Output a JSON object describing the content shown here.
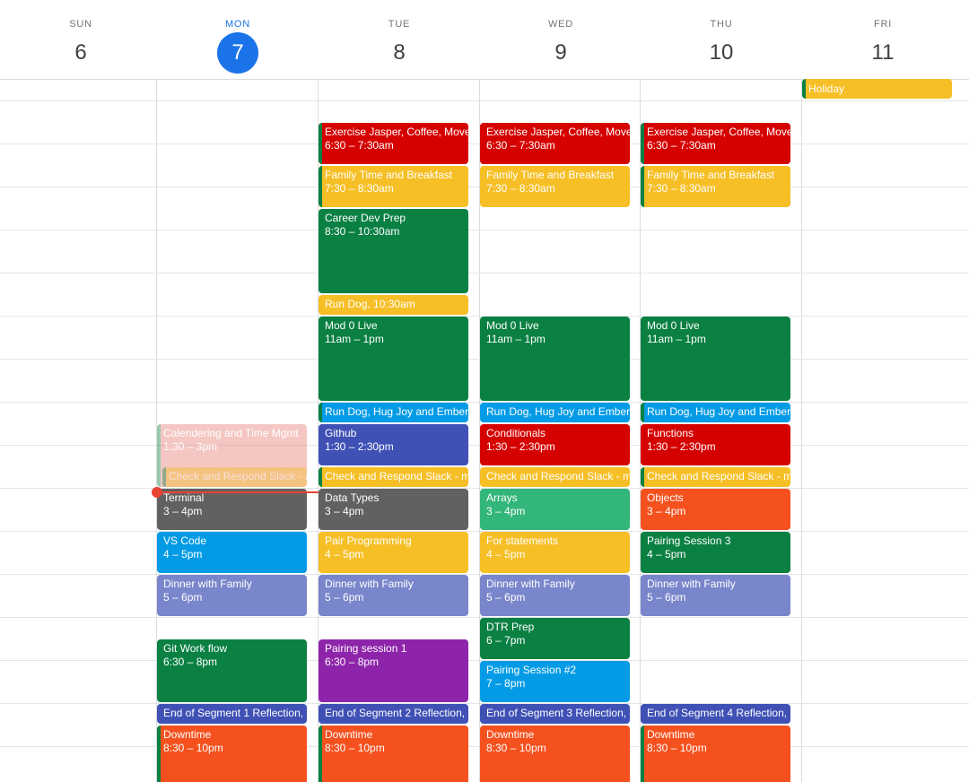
{
  "calendar": {
    "days": [
      {
        "dow": "SUN",
        "num": "6"
      },
      {
        "dow": "MON",
        "num": "7"
      },
      {
        "dow": "TUE",
        "num": "8"
      },
      {
        "dow": "WED",
        "num": "9"
      },
      {
        "dow": "THU",
        "num": "10"
      },
      {
        "dow": "FRI",
        "num": "11"
      }
    ],
    "today_index": 1,
    "all_day": [
      {
        "day": 5,
        "title": "Holiday",
        "color": "#f6bf26"
      }
    ],
    "events": [
      {
        "day": 2,
        "start": 6.5,
        "end": 7.5,
        "title": "Exercise Jasper, Coffee, Move",
        "time": "6:30 – 7:30am",
        "color": "#d50000",
        "bar": "#0b8043"
      },
      {
        "day": 2,
        "start": 7.5,
        "end": 8.5,
        "title": "Family Time and Breakfast",
        "time": "7:30 – 8:30am",
        "color": "#f6bf26",
        "bar": "#0b8043"
      },
      {
        "day": 2,
        "start": 8.5,
        "end": 10.5,
        "title": "Career Dev Prep",
        "time": "8:30 – 10:30am",
        "color": "#0b8043"
      },
      {
        "day": 2,
        "start": 10.5,
        "end": 11,
        "title": "Run Dog",
        "time": "10:30am",
        "color": "#f6bf26",
        "inline": true
      },
      {
        "day": 2,
        "start": 11,
        "end": 13,
        "title": "Mod 0 Live",
        "time": "11am – 1pm",
        "color": "#0b8043"
      },
      {
        "day": 2,
        "start": 13,
        "end": 13.5,
        "title": "Run Dog, Hug Joy and Ember",
        "time": "",
        "color": "#039be5",
        "bar": "#0b8043"
      },
      {
        "day": 2,
        "start": 13.5,
        "end": 14.5,
        "title": "Github",
        "time": "1:30 – 2:30pm",
        "color": "#3f51b5"
      },
      {
        "day": 2,
        "start": 14.5,
        "end": 15,
        "title": "Check and Respond Slack - m",
        "time": "",
        "color": "#f6bf26",
        "bar": "#0b8043"
      },
      {
        "day": 2,
        "start": 15,
        "end": 16,
        "title": "Data Types",
        "time": "3 – 4pm",
        "color": "#616161"
      },
      {
        "day": 2,
        "start": 16,
        "end": 17,
        "title": "Pair Programming",
        "time": "4 – 5pm",
        "color": "#f6bf26"
      },
      {
        "day": 2,
        "start": 17,
        "end": 18,
        "title": "Dinner with Family",
        "time": "5 – 6pm",
        "color": "#7986cb"
      },
      {
        "day": 2,
        "start": 18.5,
        "end": 20,
        "title": "Pairing session 1",
        "time": "6:30 – 8pm",
        "color": "#8e24aa"
      },
      {
        "day": 2,
        "start": 20,
        "end": 20.5,
        "title": "End of Segment 2 Reflection,",
        "time": "",
        "color": "#3f51b5"
      },
      {
        "day": 2,
        "start": 20.5,
        "end": 22,
        "title": "Downtime",
        "time": "8:30 – 10pm",
        "color": "#f4511e",
        "bar": "#0b8043"
      },
      {
        "day": 3,
        "start": 6.5,
        "end": 7.5,
        "title": "Exercise Jasper, Coffee, Move",
        "time": "6:30 – 7:30am",
        "color": "#d50000"
      },
      {
        "day": 3,
        "start": 7.5,
        "end": 8.5,
        "title": "Family Time and Breakfast",
        "time": "7:30 – 8:30am",
        "color": "#f6bf26"
      },
      {
        "day": 3,
        "start": 11,
        "end": 13,
        "title": "Mod 0 Live",
        "time": "11am – 1pm",
        "color": "#0b8043"
      },
      {
        "day": 3,
        "start": 13,
        "end": 13.5,
        "title": "Run Dog, Hug Joy and Ember",
        "time": "",
        "color": "#039be5"
      },
      {
        "day": 3,
        "start": 13.5,
        "end": 14.5,
        "title": "Conditionals",
        "time": "1:30 – 2:30pm",
        "color": "#d50000"
      },
      {
        "day": 3,
        "start": 14.5,
        "end": 15,
        "title": "Check and Respond Slack - m",
        "time": "",
        "color": "#f6bf26"
      },
      {
        "day": 3,
        "start": 15,
        "end": 16,
        "title": "Arrays",
        "time": "3 – 4pm",
        "color": "#33b679"
      },
      {
        "day": 3,
        "start": 16,
        "end": 17,
        "title": "For statements",
        "time": "4 – 5pm",
        "color": "#f6bf26"
      },
      {
        "day": 3,
        "start": 17,
        "end": 18,
        "title": "Dinner with Family",
        "time": "5 – 6pm",
        "color": "#7986cb"
      },
      {
        "day": 3,
        "start": 18,
        "end": 19,
        "title": "DTR Prep",
        "time": "6 – 7pm",
        "color": "#0b8043"
      },
      {
        "day": 3,
        "start": 19,
        "end": 20,
        "title": "Pairing Session #2",
        "time": "7 – 8pm",
        "color": "#039be5"
      },
      {
        "day": 3,
        "start": 20,
        "end": 20.5,
        "title": "End of Segment 3 Reflection,",
        "time": "",
        "color": "#3f51b5"
      },
      {
        "day": 3,
        "start": 20.5,
        "end": 22,
        "title": "Downtime",
        "time": "8:30 – 10pm",
        "color": "#f4511e"
      },
      {
        "day": 4,
        "start": 6.5,
        "end": 7.5,
        "title": "Exercise Jasper, Coffee, Move",
        "time": "6:30 – 7:30am",
        "color": "#d50000",
        "bar": "#0b8043"
      },
      {
        "day": 4,
        "start": 7.5,
        "end": 8.5,
        "title": "Family Time and Breakfast",
        "time": "7:30 – 8:30am",
        "color": "#f6bf26",
        "bar": "#0b8043"
      },
      {
        "day": 4,
        "start": 11,
        "end": 13,
        "title": "Mod 0 Live",
        "time": "11am – 1pm",
        "color": "#0b8043"
      },
      {
        "day": 4,
        "start": 13,
        "end": 13.5,
        "title": "Run Dog, Hug Joy and Ember",
        "time": "",
        "color": "#039be5",
        "bar": "#0b8043"
      },
      {
        "day": 4,
        "start": 13.5,
        "end": 14.5,
        "title": "Functions",
        "time": "1:30 – 2:30pm",
        "color": "#d50000"
      },
      {
        "day": 4,
        "start": 14.5,
        "end": 15,
        "title": "Check and Respond Slack - m",
        "time": "",
        "color": "#f6bf26",
        "bar": "#0b8043"
      },
      {
        "day": 4,
        "start": 15,
        "end": 16,
        "title": "Objects",
        "time": "3 – 4pm",
        "color": "#f4511e"
      },
      {
        "day": 4,
        "start": 16,
        "end": 17,
        "title": "Pairing Session 3",
        "time": "4 – 5pm",
        "color": "#0b8043"
      },
      {
        "day": 4,
        "start": 17,
        "end": 18,
        "title": "Dinner with Family",
        "time": "5 – 6pm",
        "color": "#7986cb"
      },
      {
        "day": 4,
        "start": 20,
        "end": 20.5,
        "title": "End of Segment 4 Reflection,",
        "time": "",
        "color": "#3f51b5"
      },
      {
        "day": 4,
        "start": 20.5,
        "end": 22,
        "title": "Downtime",
        "time": "8:30 – 10pm",
        "color": "#f4511e",
        "bar": "#0b8043"
      },
      {
        "day": 1,
        "start": 13.5,
        "end": 15,
        "title": "Calendering and Time Mgmt",
        "time": "1:30 – 3pm",
        "color": "#e67c73",
        "bar": "#0b8043",
        "muted": true
      },
      {
        "day": 1,
        "start": 14.5,
        "end": 15,
        "title": "Check and Respond Slack - m",
        "time": "",
        "color": "#f6bf26",
        "bar": "#0b8043",
        "muted": true,
        "indent": true
      },
      {
        "day": 1,
        "start": 15,
        "end": 16,
        "title": "Terminal",
        "time": "3 – 4pm",
        "color": "#616161"
      },
      {
        "day": 1,
        "start": 16,
        "end": 17,
        "title": "VS Code",
        "time": "4 – 5pm",
        "color": "#039be5"
      },
      {
        "day": 1,
        "start": 17,
        "end": 18,
        "title": "Dinner with Family",
        "time": "5 – 6pm",
        "color": "#7986cb"
      },
      {
        "day": 1,
        "start": 18.5,
        "end": 20,
        "title": "Git Work flow",
        "time": "6:30 – 8pm",
        "color": "#0b8043"
      },
      {
        "day": 1,
        "start": 20,
        "end": 20.5,
        "title": "End of Segment 1 Reflection,",
        "time": "",
        "color": "#3f51b5"
      },
      {
        "day": 1,
        "start": 20.5,
        "end": 22,
        "title": "Downtime",
        "time": "8:30 – 10pm",
        "color": "#f4511e",
        "bar": "#0b8043"
      }
    ],
    "now_hour": 15.1
  }
}
